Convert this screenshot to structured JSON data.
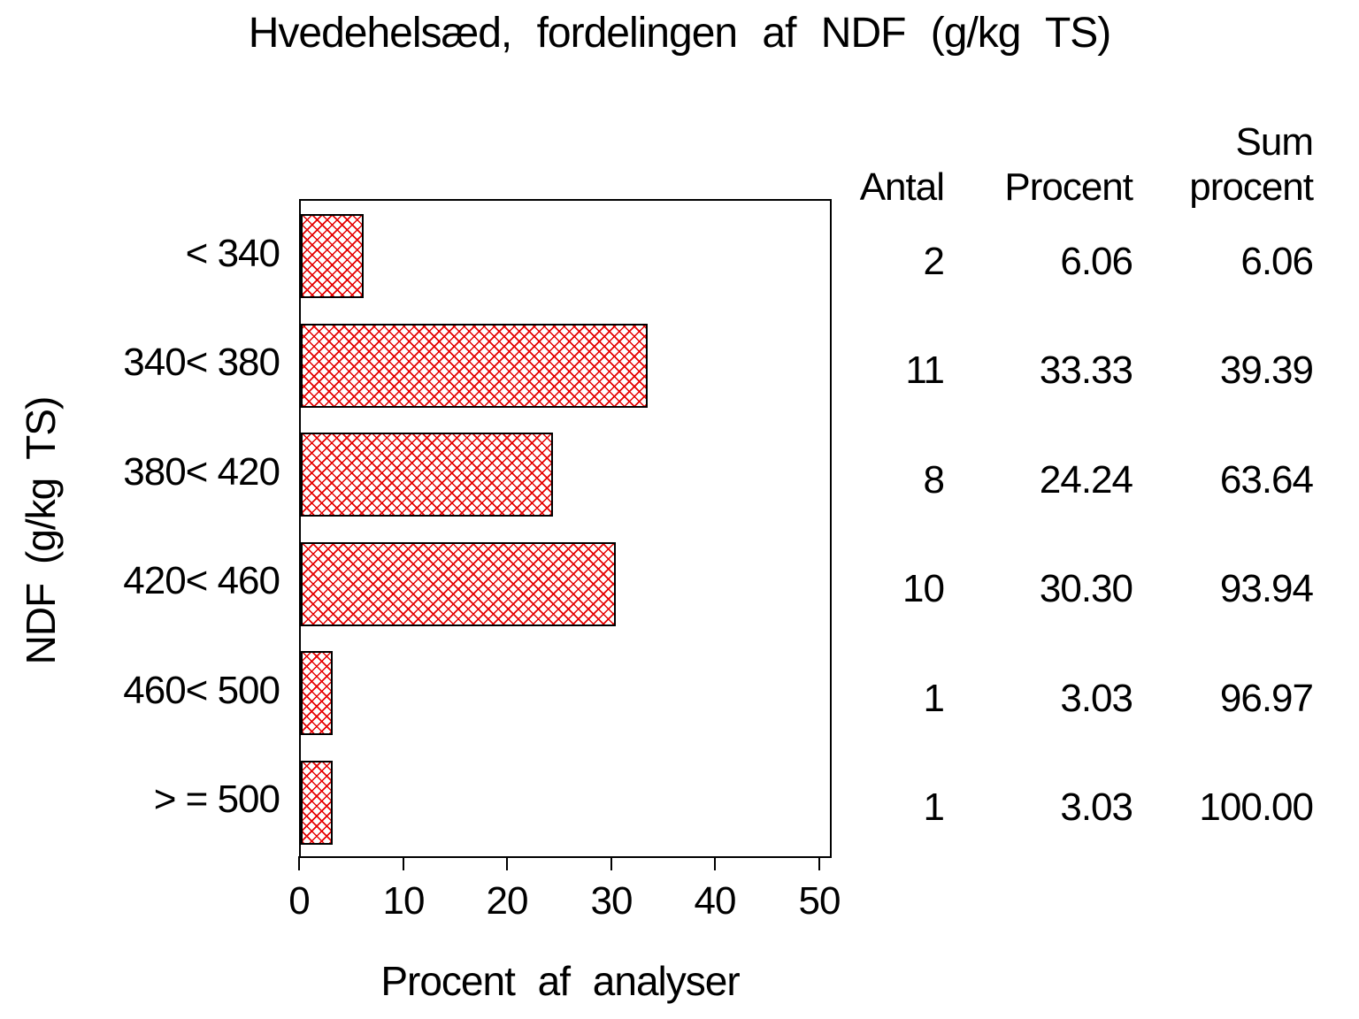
{
  "page": {
    "background": "#ffffff",
    "text_color": "#000000"
  },
  "chart_data": {
    "type": "bar",
    "orientation": "horizontal",
    "title": "Hvedehelsæd, fordelingen af NDF (g/kg TS)",
    "xlabel": "Procent af analyser",
    "ylabel": "NDF (g/kg TS)",
    "categories": [
      "< 340",
      "340< 380",
      "380< 420",
      "420< 460",
      "460< 500",
      "> = 500"
    ],
    "values": [
      6.06,
      33.33,
      24.24,
      30.3,
      3.03,
      3.03
    ],
    "xlim": [
      0,
      50
    ],
    "xticks": [
      "0",
      "10",
      "20",
      "30",
      "40",
      "50"
    ],
    "grid": false,
    "legend": "none",
    "bar_color": "#e60000",
    "bar_fill_pattern": "diagonal-crosshatch",
    "side_table": {
      "col_headers": [
        {
          "top": "",
          "bottom": "Antal"
        },
        {
          "top": "",
          "bottom": "Procent"
        },
        {
          "top": "Sum",
          "bottom": "procent"
        }
      ],
      "rows": [
        {
          "antal": "2",
          "procent": "6.06",
          "sum_procent": "6.06"
        },
        {
          "antal": "11",
          "procent": "33.33",
          "sum_procent": "39.39"
        },
        {
          "antal": "8",
          "procent": "24.24",
          "sum_procent": "63.64"
        },
        {
          "antal": "10",
          "procent": "30.30",
          "sum_procent": "93.94"
        },
        {
          "antal": "1",
          "procent": "3.03",
          "sum_procent": "96.97"
        },
        {
          "antal": "1",
          "procent": "3.03",
          "sum_procent": "100.00"
        }
      ]
    }
  }
}
